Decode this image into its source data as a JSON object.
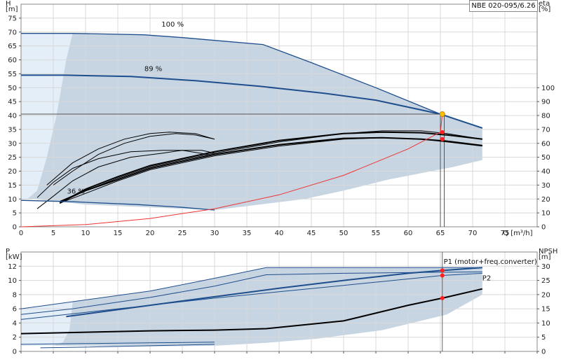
{
  "model": "NBE 020-095/6.26",
  "colors": {
    "envelope_fill": "#c7d5e3",
    "light_fill": "#e4eef8",
    "pump_curve": "#1f4e8c",
    "eff_curve": "#000000",
    "system_curve": "#ee3333",
    "duty_point": "#ff2222",
    "duty_point_main": "#ffc000"
  },
  "chart_data": [
    {
      "id": "top",
      "type": "line",
      "xlabel": "Q [m³/h]",
      "ylabel_left": "H",
      "ylabel_left_unit": "[m]",
      "ylabel_right": "eta",
      "ylabel_right_unit": "[%]",
      "xlim": [
        0,
        80
      ],
      "ylim": [
        0,
        80
      ],
      "xticks": [
        "0",
        "5",
        "10",
        "15",
        "20",
        "25",
        "30",
        "35",
        "40",
        "45",
        "50",
        "55",
        "60",
        "65",
        "70",
        "75"
      ],
      "yticks": [
        "0",
        "5",
        "10",
        "15",
        "20",
        "25",
        "30",
        "35",
        "40",
        "45",
        "50",
        "55",
        "60",
        "65",
        "70",
        "75"
      ],
      "right_ticks": [
        "0",
        "10",
        "20",
        "30",
        "40",
        "50",
        "60",
        "70",
        "80",
        "90",
        "100"
      ],
      "right_lim": [
        0,
        160
      ],
      "grid": true,
      "curve_labels": [
        {
          "text": "100 %",
          "x": 23.5,
          "y": 72
        },
        {
          "text": "89 %",
          "x": 20.5,
          "y": 56
        },
        {
          "text": "36 %",
          "x": 8.5,
          "y": 12
        }
      ],
      "envelope": [
        [
          0,
          69.5
        ],
        [
          8,
          69.5
        ],
        [
          19,
          69
        ],
        [
          25,
          68
        ],
        [
          37.5,
          65.5
        ],
        [
          55,
          50
        ],
        [
          65,
          40.5
        ],
        [
          71.5,
          35.5
        ],
        [
          71.5,
          24
        ],
        [
          67,
          21.5
        ],
        [
          57,
          17
        ],
        [
          50,
          13
        ],
        [
          44,
          10
        ],
        [
          30,
          6
        ],
        [
          20,
          7
        ],
        [
          10,
          8
        ],
        [
          2,
          10
        ],
        [
          0,
          10
        ]
      ],
      "light_region": [
        [
          0,
          69.5
        ],
        [
          8,
          69.5
        ],
        [
          7,
          60
        ],
        [
          5.5,
          40
        ],
        [
          4,
          25
        ],
        [
          2.5,
          13
        ],
        [
          1,
          10
        ],
        [
          0,
          10
        ]
      ],
      "pump_curves": [
        {
          "points": [
            [
              0,
              69.5
            ],
            [
              8,
              69.5
            ],
            [
              19,
              69
            ],
            [
              25,
              68
            ],
            [
              30,
              67
            ],
            [
              37.5,
              65.5
            ],
            [
              45,
              59
            ],
            [
              55,
              50
            ],
            [
              65,
              40.5
            ],
            [
              71.5,
              35.5
            ]
          ]
        },
        {
          "points": [
            [
              0,
              54.5
            ],
            [
              7,
              54.5
            ],
            [
              17,
              54
            ],
            [
              27,
              52.5
            ],
            [
              37,
              50.5
            ],
            [
              47,
              48
            ],
            [
              55,
              45.5
            ],
            [
              62,
              42
            ],
            [
              65,
              40.5
            ],
            [
              71.5,
              35.5
            ]
          ]
        },
        {
          "points": [
            [
              0,
              9.5
            ],
            [
              8,
              9
            ],
            [
              18,
              8
            ],
            [
              25,
              7
            ],
            [
              30,
              6
            ]
          ]
        }
      ],
      "eff_curves": [
        {
          "width": 1,
          "points": [
            [
              2.5,
              6.5
            ],
            [
              5,
              11
            ],
            [
              8,
              16.5
            ],
            [
              12,
              21.5
            ],
            [
              17,
              25
            ],
            [
              22,
              26.5
            ],
            [
              25,
              27.5
            ],
            [
              28,
              27.5
            ],
            [
              30,
              26.5
            ]
          ]
        },
        {
          "width": 1,
          "points": [
            [
              2.5,
              10.5
            ],
            [
              5,
              16
            ],
            [
              8,
              21
            ],
            [
              12,
              24.5
            ],
            [
              17,
              27
            ],
            [
              22,
              27.5
            ],
            [
              25,
              27.5
            ],
            [
              29,
              26
            ]
          ]
        },
        {
          "width": 1,
          "points": [
            [
              5,
              15
            ],
            [
              8,
              20
            ],
            [
              12,
              26
            ],
            [
              16,
              30
            ],
            [
              20,
              32.5
            ],
            [
              24,
              33.5
            ],
            [
              27,
              33
            ],
            [
              30,
              31.5
            ]
          ]
        },
        {
          "width": 1,
          "points": [
            [
              4,
              15
            ],
            [
              8,
              23
            ],
            [
              12,
              28
            ],
            [
              16,
              31.5
            ],
            [
              20,
              33.5
            ],
            [
              23,
              34
            ],
            [
              27,
              33.5
            ],
            [
              30,
              31.5
            ]
          ]
        },
        {
          "width": 1,
          "points": [
            [
              6,
              8.5
            ],
            [
              10,
              13
            ],
            [
              15,
              17.5
            ],
            [
              20,
              21.5
            ],
            [
              30,
              26.5
            ],
            [
              40,
              30.5
            ],
            [
              50,
              33.5
            ],
            [
              56,
              34.5
            ],
            [
              62,
              34.5
            ],
            [
              66,
              33.5
            ],
            [
              71.5,
              31.5
            ]
          ]
        },
        {
          "width": 1,
          "points": [
            [
              6,
              8.5
            ],
            [
              10,
              12
            ],
            [
              15,
              16.5
            ],
            [
              20,
              20.5
            ],
            [
              30,
              25.5
            ],
            [
              40,
              29
            ],
            [
              50,
              31.5
            ],
            [
              56,
              32
            ],
            [
              62,
              31.5
            ],
            [
              66,
              30.5
            ],
            [
              71.5,
              29
            ]
          ]
        },
        {
          "width": 2,
          "points": [
            [
              6,
              8.5
            ],
            [
              10,
              13.5
            ],
            [
              15,
              18
            ],
            [
              20,
              22
            ],
            [
              30,
              27
            ],
            [
              40,
              31
            ],
            [
              50,
              33.5
            ],
            [
              56,
              34
            ],
            [
              62,
              33.8
            ],
            [
              66,
              33
            ],
            [
              71.5,
              31.5
            ]
          ]
        },
        {
          "width": 2,
          "points": [
            [
              6,
              9
            ],
            [
              10,
              13
            ],
            [
              15,
              17
            ],
            [
              20,
              21
            ],
            [
              30,
              26
            ],
            [
              40,
              29.5
            ],
            [
              50,
              31.8
            ],
            [
              56,
              32
            ],
            [
              62,
              31.5
            ],
            [
              66,
              30.8
            ],
            [
              71.5,
              29.2
            ]
          ]
        }
      ],
      "system_curve": [
        [
          0,
          0
        ],
        [
          10,
          0.8
        ],
        [
          20,
          3
        ],
        [
          30,
          6.5
        ],
        [
          40,
          11.5
        ],
        [
          50,
          18.5
        ],
        [
          60,
          28
        ],
        [
          65,
          34
        ],
        [
          65.3,
          40.5
        ]
      ],
      "duty_lines": [
        {
          "x": 65,
          "y": 40.5
        },
        {
          "x": 65.6,
          "y": 40.5
        }
      ],
      "duty_points": [
        {
          "x": 65.3,
          "y": 40.5,
          "main": true
        },
        {
          "x": 65.3,
          "y": 34,
          "main": false
        },
        {
          "x": 65.3,
          "y": 31.5,
          "main": false
        }
      ]
    },
    {
      "id": "bottom",
      "type": "line",
      "ylabel_left": "P",
      "ylabel_left_unit": "[kW]",
      "ylabel_right": "NPSH",
      "ylabel_right_unit": "[m]",
      "xlim": [
        0,
        80
      ],
      "ylim": [
        0,
        14
      ],
      "yticks": [
        "0",
        "2",
        "4",
        "6",
        "8",
        "10",
        "12"
      ],
      "right_ticks": [
        "0",
        "5",
        "10",
        "15",
        "20",
        "25",
        "30"
      ],
      "right_lim": [
        0,
        35
      ],
      "grid": true,
      "series_labels": [
        {
          "text": "P1 (motor+freq.converter)",
          "x": 65.5,
          "y": 12.3
        },
        {
          "text": "P2",
          "x": 71.5,
          "y": 10.0
        }
      ],
      "envelope": [
        [
          0,
          6.0
        ],
        [
          8,
          7.0
        ],
        [
          20,
          8.5
        ],
        [
          30,
          10.3
        ],
        [
          38,
          11.8
        ],
        [
          50,
          11.8
        ],
        [
          60,
          11.8
        ],
        [
          71.5,
          11.8
        ],
        [
          71.5,
          8.0
        ],
        [
          66,
          5.2
        ],
        [
          56,
          3.0
        ],
        [
          46,
          1.8
        ],
        [
          38,
          1.2
        ],
        [
          30,
          0.8
        ],
        [
          20,
          0.7
        ],
        [
          10,
          0.8
        ],
        [
          0,
          0.8
        ]
      ],
      "light_region": [
        [
          0,
          6.0
        ],
        [
          8,
          7.0
        ],
        [
          7.5,
          3
        ],
        [
          6.5,
          1.3
        ],
        [
          5,
          0.8
        ],
        [
          0,
          0.8
        ]
      ],
      "power_curves": [
        {
          "width": 1,
          "points": [
            [
              0,
              6.0
            ],
            [
              8,
              7.0
            ],
            [
              20,
              8.5
            ],
            [
              30,
              10.3
            ],
            [
              38,
              11.8
            ],
            [
              50,
              11.8
            ],
            [
              60,
              11.8
            ],
            [
              71.5,
              11.8
            ]
          ]
        },
        {
          "width": 1,
          "points": [
            [
              0,
              5.2
            ],
            [
              8,
              6.0
            ],
            [
              20,
              7.6
            ],
            [
              30,
              9.2
            ],
            [
              38,
              10.8
            ],
            [
              50,
              11.0
            ],
            [
              60,
              11.1
            ],
            [
              71.5,
              11.2
            ]
          ]
        },
        {
          "width": 2,
          "points": [
            [
              7,
              4.9
            ],
            [
              20,
              6.5
            ],
            [
              30,
              7.7
            ],
            [
              40,
              8.9
            ],
            [
              50,
              10.0
            ],
            [
              60,
              11.0
            ],
            [
              65.3,
              11.4
            ],
            [
              71.5,
              11.8
            ]
          ]
        },
        {
          "width": 1,
          "points": [
            [
              0,
              4.5
            ],
            [
              10,
              5.5
            ],
            [
              20,
              6.5
            ],
            [
              30,
              7.5
            ],
            [
              40,
              8.4
            ],
            [
              50,
              9.3
            ],
            [
              60,
              10.2
            ],
            [
              65.3,
              10.7
            ],
            [
              71.5,
              11.0
            ]
          ]
        },
        {
          "width": 1,
          "points": [
            [
              0,
              1.0
            ],
            [
              10,
              1.1
            ],
            [
              20,
              1.2
            ],
            [
              30,
              1.3
            ]
          ]
        },
        {
          "width": 1,
          "points": [
            [
              3,
              0.5
            ],
            [
              10,
              0.6
            ],
            [
              20,
              0.8
            ],
            [
              30,
              1.0
            ]
          ]
        }
      ],
      "npsh_curve": [
        [
          0,
          2.5
        ],
        [
          10,
          2.7
        ],
        [
          20,
          2.9
        ],
        [
          30,
          3.0
        ],
        [
          38,
          3.2
        ],
        [
          50,
          4.3
        ],
        [
          60,
          6.5
        ],
        [
          65.3,
          7.5
        ],
        [
          71.5,
          8.8
        ]
      ],
      "duty_line_x": 65.3,
      "duty_points": [
        {
          "x": 65.3,
          "y": 11.4
        },
        {
          "x": 65.3,
          "y": 10.7
        },
        {
          "x": 65.3,
          "y": 7.5,
          "right": true
        }
      ]
    }
  ]
}
